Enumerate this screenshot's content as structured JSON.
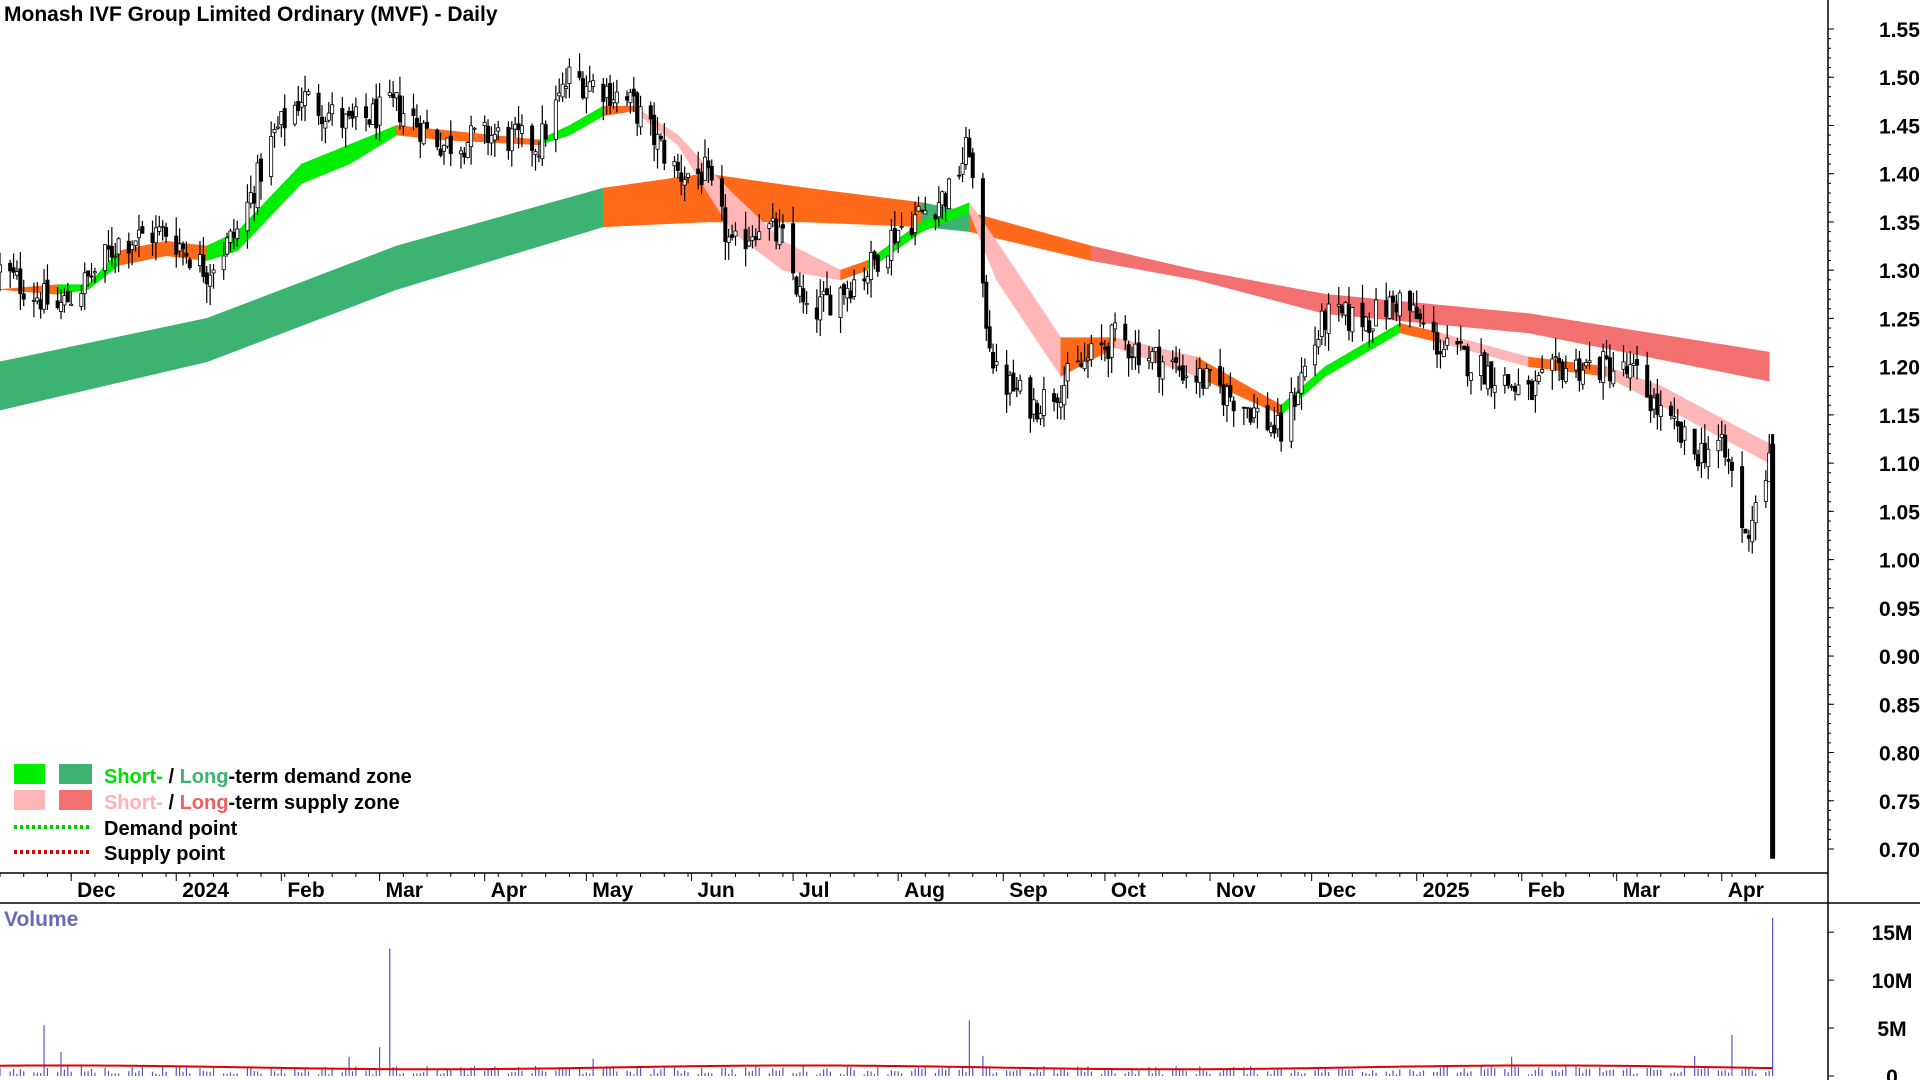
{
  "title": "Monash IVF Group Limited Ordinary (MVF) - Daily",
  "volume_title": "Volume",
  "legend": {
    "demand_zone": {
      "short": "Short-",
      "sep": " / ",
      "long": "Long",
      "rest": "-term demand zone"
    },
    "supply_zone": {
      "short": "Short-",
      "sep": " / ",
      "long": "Long",
      "rest": "-term supply zone"
    },
    "demand_point": "Demand point",
    "supply_point": "Supply point"
  },
  "colors": {
    "short_demand": "#00ee00",
    "long_demand": "#3cb371",
    "short_supply_light": "#ffb6b6",
    "short_supply_orange": "#ff6a1a",
    "long_supply": "#f27070",
    "demand_point": "#00cc00",
    "supply_point": "#e00000",
    "volume_bars": "#5555cc",
    "volume_avg": "#e00000"
  },
  "chart_data": [
    {
      "type": "candlestick",
      "title": "Monash IVF Group Limited Ordinary (MVF) - Daily",
      "ylim": [
        0.68,
        1.58
      ],
      "y_ticks": [
        "1.55",
        "1.50",
        "1.45",
        "1.40",
        "1.35",
        "1.30",
        "1.25",
        "1.20",
        "1.15",
        "1.10",
        "1.05",
        "1.00",
        "0.95",
        "0.90",
        "0.85",
        "0.80",
        "0.75",
        "0.70"
      ],
      "x_ticks": [
        "Dec",
        "2024",
        "Feb",
        "Mar",
        "Apr",
        "May",
        "Jun",
        "Jul",
        "Aug",
        "Sep",
        "Oct",
        "Nov",
        "Dec",
        "2025",
        "Feb",
        "Mar",
        "Apr"
      ],
      "close_anchors": [
        [
          "2023-11-10",
          1.3
        ],
        [
          "2023-11-27",
          1.26
        ],
        [
          "2023-12-06",
          1.29
        ],
        [
          "2023-12-15",
          1.33
        ],
        [
          "2023-12-29",
          1.34
        ],
        [
          "2024-01-10",
          1.3
        ],
        [
          "2024-01-19",
          1.34
        ],
        [
          "2024-01-30",
          1.44
        ],
        [
          "2024-02-07",
          1.48
        ],
        [
          "2024-02-21",
          1.45
        ],
        [
          "2024-03-06",
          1.47
        ],
        [
          "2024-03-20",
          1.43
        ],
        [
          "2024-04-03",
          1.44
        ],
        [
          "2024-04-17",
          1.43
        ],
        [
          "2024-04-26",
          1.5
        ],
        [
          "2024-05-06",
          1.49
        ],
        [
          "2024-05-15",
          1.47
        ],
        [
          "2024-05-28",
          1.4
        ],
        [
          "2024-06-05",
          1.4
        ],
        [
          "2024-06-13",
          1.32
        ],
        [
          "2024-06-21",
          1.35
        ],
        [
          "2024-06-28",
          1.33
        ],
        [
          "2024-07-05",
          1.25
        ],
        [
          "2024-07-15",
          1.28
        ],
        [
          "2024-07-23",
          1.3
        ],
        [
          "2024-07-31",
          1.34
        ],
        [
          "2024-08-08",
          1.36
        ],
        [
          "2024-08-16",
          1.38
        ],
        [
          "2024-08-22",
          1.43
        ],
        [
          "2024-08-26",
          1.27
        ],
        [
          "2024-08-30",
          1.19
        ],
        [
          "2024-09-10",
          1.16
        ],
        [
          "2024-09-18",
          1.18
        ],
        [
          "2024-09-27",
          1.21
        ],
        [
          "2024-10-04",
          1.23
        ],
        [
          "2024-10-15",
          1.21
        ],
        [
          "2024-10-28",
          1.19
        ],
        [
          "2024-11-12",
          1.16
        ],
        [
          "2024-11-22",
          1.13
        ],
        [
          "2024-11-28",
          1.19
        ],
        [
          "2024-12-05",
          1.25
        ],
        [
          "2024-12-18",
          1.25
        ],
        [
          "2024-12-27",
          1.27
        ],
        [
          "2025-01-08",
          1.22
        ],
        [
          "2025-01-20",
          1.2
        ],
        [
          "2025-02-03",
          1.17
        ],
        [
          "2025-02-13",
          1.2
        ],
        [
          "2025-02-26",
          1.2
        ],
        [
          "2025-03-07",
          1.19
        ],
        [
          "2025-03-14",
          1.15
        ],
        [
          "2025-03-24",
          1.11
        ],
        [
          "2025-03-31",
          1.12
        ],
        [
          "2025-04-04",
          1.09
        ],
        [
          "2025-04-08",
          1.02
        ],
        [
          "2025-04-11",
          1.06
        ],
        [
          "2025-04-15",
          1.1
        ]
      ],
      "last_bar": {
        "date": "2025-04-16",
        "open": 1.12,
        "high": 1.13,
        "low": 0.69,
        "close": 0.69
      },
      "short_term_zone": [
        [
          "2023-11-10",
          1.28,
          1.28,
          "demand"
        ],
        [
          "2023-11-27",
          1.285,
          1.275,
          "supply"
        ],
        [
          "2023-12-06",
          1.285,
          1.28,
          "demand"
        ],
        [
          "2023-12-15",
          1.32,
          1.305,
          "demand"
        ],
        [
          "2023-12-29",
          1.33,
          1.315,
          "supply"
        ],
        [
          "2024-01-10",
          1.325,
          1.31,
          "supply"
        ],
        [
          "2024-01-19",
          1.34,
          1.32,
          "demand"
        ],
        [
          "2024-02-07",
          1.41,
          1.39,
          "demand"
        ],
        [
          "2024-02-21",
          1.43,
          1.41,
          "demand"
        ],
        [
          "2024-03-06",
          1.45,
          1.44,
          "demand"
        ],
        [
          "2024-03-20",
          1.445,
          1.435,
          "supply"
        ],
        [
          "2024-04-17",
          1.435,
          1.43,
          "supply"
        ],
        [
          "2024-04-26",
          1.45,
          1.44,
          "demand"
        ],
        [
          "2024-05-06",
          1.47,
          1.46,
          "demand"
        ],
        [
          "2024-05-15",
          1.47,
          1.465,
          "supply"
        ],
        [
          "2024-05-28",
          1.44,
          1.43,
          "supply_light"
        ],
        [
          "2024-06-13",
          1.38,
          1.34,
          "supply_light"
        ],
        [
          "2024-06-28",
          1.33,
          1.3,
          "supply_light"
        ],
        [
          "2024-07-15",
          1.3,
          1.29,
          "supply_light"
        ],
        [
          "2024-07-23",
          1.31,
          1.3,
          "supply"
        ],
        [
          "2024-08-08",
          1.35,
          1.34,
          "demand"
        ],
        [
          "2024-08-22",
          1.37,
          1.36,
          "demand"
        ],
        [
          "2024-08-30",
          1.33,
          1.29,
          "supply_light"
        ],
        [
          "2024-09-18",
          1.23,
          1.19,
          "supply_light"
        ],
        [
          "2024-10-04",
          1.23,
          1.22,
          "supply"
        ],
        [
          "2024-10-28",
          1.21,
          1.19,
          "supply_light"
        ],
        [
          "2024-11-22",
          1.16,
          1.15,
          "supply"
        ],
        [
          "2024-12-05",
          1.2,
          1.19,
          "demand"
        ],
        [
          "2024-12-27",
          1.245,
          1.235,
          "demand"
        ],
        [
          "2025-01-08",
          1.235,
          1.225,
          "supply"
        ],
        [
          "2025-02-03",
          1.21,
          1.2,
          "supply_light"
        ],
        [
          "2025-02-26",
          1.2,
          1.19,
          "supply"
        ],
        [
          "2025-03-14",
          1.18,
          1.16,
          "supply_light"
        ],
        [
          "2025-04-15",
          1.12,
          1.1,
          "supply_light"
        ]
      ],
      "long_term_zone": [
        [
          "2023-11-10",
          1.205,
          1.155,
          "demand"
        ],
        [
          "2024-01-10",
          1.25,
          1.205,
          "demand"
        ],
        [
          "2024-03-06",
          1.325,
          1.28,
          "demand"
        ],
        [
          "2024-05-06",
          1.385,
          1.345,
          "demand"
        ],
        [
          "2024-06-05",
          1.4,
          1.35,
          "supply_orange"
        ],
        [
          "2024-07-05",
          1.385,
          1.35,
          "supply_orange"
        ],
        [
          "2024-08-08",
          1.37,
          1.345,
          "supply_orange"
        ],
        [
          "2024-08-22",
          1.36,
          1.34,
          "demand"
        ],
        [
          "2024-09-27",
          1.325,
          1.31,
          "supply_orange"
        ],
        [
          "2024-10-28",
          1.3,
          1.29,
          "supply"
        ],
        [
          "2024-12-05",
          1.275,
          1.255,
          "supply"
        ],
        [
          "2025-02-03",
          1.255,
          1.235,
          "supply"
        ],
        [
          "2025-04-15",
          1.215,
          1.185,
          "supply"
        ]
      ]
    },
    {
      "type": "bar",
      "title": "Volume",
      "ylim": [
        0,
        17000000
      ],
      "y_ticks": [
        "15M",
        "10M",
        "5M",
        "0"
      ],
      "spikes": [
        [
          "2023-11-23",
          5300000
        ],
        [
          "2023-11-28",
          2500000
        ],
        [
          "2024-02-21",
          2000000
        ],
        [
          "2024-03-01",
          3000000
        ],
        [
          "2024-03-04",
          13300000
        ],
        [
          "2024-05-03",
          1800000
        ],
        [
          "2024-08-22",
          5800000
        ],
        [
          "2024-08-26",
          2100000
        ],
        [
          "2025-01-29",
          2000000
        ],
        [
          "2025-03-24",
          2100000
        ],
        [
          "2025-04-04",
          4300000
        ],
        [
          "2025-04-16",
          16500000
        ]
      ]
    }
  ]
}
